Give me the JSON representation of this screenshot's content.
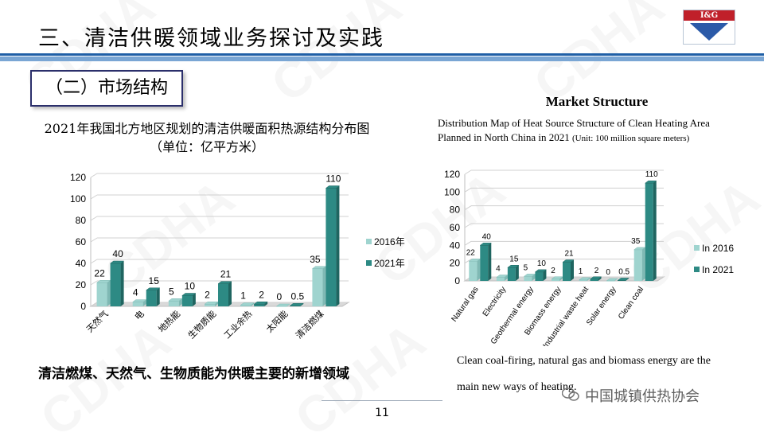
{
  "header": {
    "title": "三、清洁供暖领域业务探讨及实践",
    "logo_text": "I&G"
  },
  "section": {
    "label": "（二）市场结构"
  },
  "watermark": "CDHA",
  "cn_chart_title": "2021年我国北方地区规划的清洁供暖面积热源结构分布图（单位：亿平方米）",
  "en_header": "Market Structure",
  "en_caption": "Distribution Map of Heat Source Structure of Clean Heating Area Planned in North China in 2021",
  "en_caption_unit": "(Unit: 100 million square meters)",
  "cn_conclusion": "清洁燃煤、天然气、生物质能为供暖主要的新增领域",
  "en_conclusion": "Clean coal-firing, natural gas and biomass energy are the main new ways of heating.",
  "wechat_label": "中国城镇供热协会",
  "page_number": "11",
  "colors": {
    "series_2016": "#9fd4cf",
    "series_2021": "#2d8a84",
    "rule": "#1f5fa6"
  },
  "chart_data": [
    {
      "type": "bar",
      "title": "2021年我国北方地区规划的清洁供暖面积热源结构分布图（单位：亿平方米）",
      "categories": [
        "天然气",
        "电",
        "地热能",
        "生物质能",
        "工业余热",
        "太阳能",
        "清洁燃煤"
      ],
      "series": [
        {
          "name": "2016年",
          "values": [
            22,
            4,
            5,
            2,
            1,
            0,
            35
          ],
          "labels": [
            "22",
            "4",
            "5",
            "2",
            "1",
            "0",
            "35"
          ]
        },
        {
          "name": "2021年",
          "values": [
            40,
            15,
            10,
            21,
            2,
            0.5,
            110
          ],
          "labels": [
            "40",
            "15",
            "10",
            "21",
            "2",
            "0.5",
            "110"
          ]
        }
      ],
      "yticks": [
        "0",
        "20",
        "40",
        "60",
        "80",
        "100",
        "120"
      ],
      "ylim": [
        0,
        120
      ],
      "legend_position": "right",
      "grid": true
    },
    {
      "type": "bar",
      "title": "Distribution Map of Heat Source Structure of Clean Heating Area Planned in North China in 2021",
      "categories": [
        "Natural gas",
        "Electricity",
        "Geothermal energy",
        "Biomass energy",
        "Industrial waste heat",
        "Solar energy",
        "Clean coal"
      ],
      "series": [
        {
          "name": "In 2016",
          "values": [
            22,
            4,
            5,
            2,
            1,
            0,
            35
          ],
          "labels": [
            "22",
            "4",
            "5",
            "2",
            "1",
            "0",
            "35"
          ]
        },
        {
          "name": "In 2021",
          "values": [
            40,
            15,
            10,
            21,
            2,
            0.5,
            110
          ],
          "labels": [
            "40",
            "15",
            "10",
            "21",
            "2",
            "0.5",
            "110"
          ]
        }
      ],
      "yticks": [
        "0",
        "20",
        "40",
        "60",
        "80",
        "100",
        "120"
      ],
      "ylim": [
        0,
        120
      ],
      "legend_position": "right",
      "grid": true
    }
  ]
}
